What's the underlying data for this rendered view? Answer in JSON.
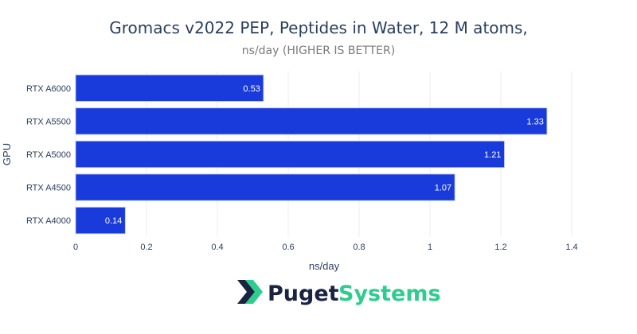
{
  "chart_data": {
    "type": "bar",
    "orientation": "horizontal",
    "title": "Gromacs v2022 PEP, Peptides in Water, 12 M atoms,",
    "subtitle": "ns/day (HIGHER IS BETTER)",
    "xlabel": "ns/day",
    "ylabel": "GPU",
    "categories": [
      "RTX A6000",
      "RTX A5500",
      "RTX A5000",
      "RTX A4500",
      "RTX A4000"
    ],
    "values": [
      0.53,
      1.33,
      1.21,
      1.07,
      0.14
    ],
    "data_labels": [
      "0.53",
      "1.33",
      "1.21",
      "1.07",
      "0.14"
    ],
    "xlim": [
      0,
      1.4
    ],
    "xticks": [
      0,
      0.2,
      0.4,
      0.6,
      0.8,
      1,
      1.2,
      1.4
    ],
    "xtick_labels": [
      "0",
      "0.2",
      "0.4",
      "0.6",
      "0.8",
      "1",
      "1.2",
      "1.4"
    ],
    "grid": true,
    "bar_color": "#1a3bdb"
  },
  "branding": {
    "word1": "Puget",
    "word2": "Systems",
    "word1_color": "#1a2340",
    "word2_color": "#2ecc8f",
    "logo_color_dark": "#1a2340",
    "logo_color_accent": "#2ecc8f"
  }
}
